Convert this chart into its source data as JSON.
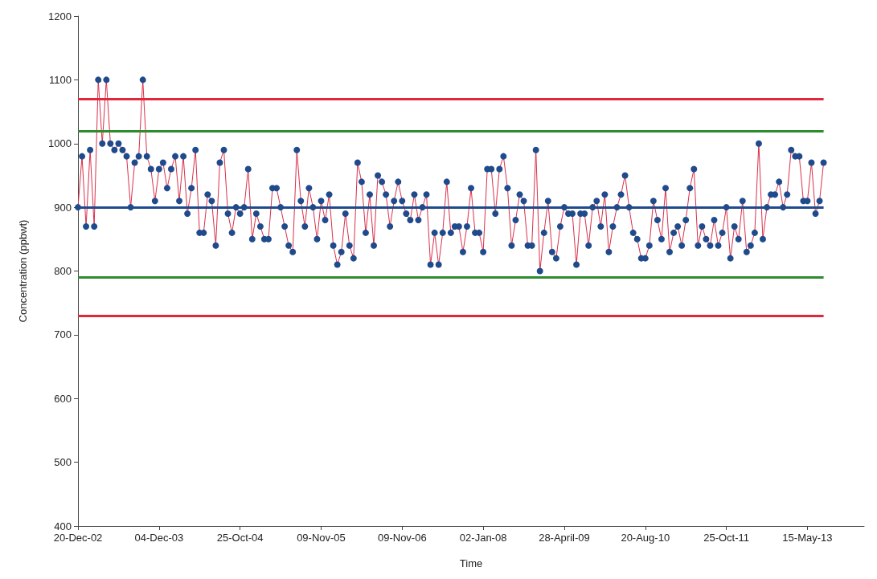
{
  "chart_data": {
    "type": "line",
    "xlabel": "Time",
    "ylabel": "Concentration (ppbwt)",
    "categories": [
      "20-Dec-02",
      null,
      null,
      null,
      null,
      null,
      null,
      null,
      null,
      null,
      null,
      null,
      null,
      null,
      null,
      null,
      null,
      null,
      null,
      null,
      "04-Dec-03",
      null,
      null,
      null,
      null,
      null,
      null,
      null,
      null,
      null,
      null,
      null,
      null,
      null,
      null,
      null,
      null,
      null,
      null,
      null,
      "25-Oct-04",
      null,
      null,
      null,
      null,
      null,
      null,
      null,
      null,
      null,
      null,
      null,
      null,
      null,
      null,
      null,
      null,
      null,
      null,
      null,
      "09-Nov-05",
      null,
      null,
      null,
      null,
      null,
      null,
      null,
      null,
      null,
      null,
      null,
      null,
      null,
      null,
      null,
      null,
      null,
      null,
      null,
      "09-Nov-06",
      null,
      null,
      null,
      null,
      null,
      null,
      null,
      null,
      null,
      null,
      null,
      null,
      null,
      null,
      null,
      null,
      null,
      null,
      null,
      "02-Jan-08",
      null,
      null,
      null,
      null,
      null,
      null,
      null,
      null,
      null,
      null,
      null,
      null,
      null,
      null,
      null,
      null,
      null,
      null,
      null,
      "28-April-09",
      null,
      null,
      null,
      null,
      null,
      null,
      null,
      null,
      null,
      null,
      null,
      null,
      null,
      null,
      null,
      null,
      null,
      null,
      null,
      "20-Aug-10",
      null,
      null,
      null,
      null,
      null,
      null,
      null,
      null,
      null,
      null,
      null,
      null,
      null,
      null,
      null,
      null,
      null,
      null,
      null,
      "25-Oct-11",
      null,
      null,
      null,
      null,
      null,
      null,
      null,
      null,
      null,
      null,
      null,
      null,
      null,
      null,
      null,
      null,
      null,
      null,
      null,
      "15-May-13",
      null,
      null,
      null,
      null,
      null,
      null,
      null,
      null,
      null,
      null,
      null,
      null,
      null,
      null
    ],
    "series": [
      {
        "color": "#1f4a8c",
        "values": [
          900,
          980,
          870,
          990,
          870,
          1100,
          1000,
          1100,
          1000,
          990,
          1000,
          990,
          980,
          900,
          970,
          980,
          1100,
          980,
          960,
          910,
          960,
          970,
          930,
          960,
          980,
          910,
          980,
          890,
          930,
          990,
          860,
          860,
          920,
          910,
          840,
          970,
          990,
          890,
          860,
          900,
          890,
          900,
          960,
          850,
          890,
          870,
          850,
          850,
          930,
          930,
          900,
          870,
          840,
          830,
          990,
          910,
          870,
          930,
          900,
          850,
          910,
          880,
          920,
          840,
          810,
          830,
          890,
          840,
          820,
          970,
          940,
          860,
          920,
          840,
          950,
          940,
          920,
          870,
          910,
          940,
          910,
          890,
          880,
          920,
          880,
          900,
          920,
          810,
          860,
          810,
          860,
          940,
          860,
          870,
          870,
          830,
          870,
          930,
          860,
          860,
          830,
          960,
          960,
          890,
          960,
          980,
          930,
          840,
          880,
          920,
          910,
          840,
          840,
          990,
          800,
          860,
          910,
          830,
          820,
          870,
          900,
          890,
          890,
          810,
          890,
          890,
          840,
          900,
          910,
          870,
          920,
          830,
          870,
          900,
          920,
          950,
          900,
          860,
          850,
          820,
          820,
          840,
          910,
          880,
          850,
          930,
          830,
          860,
          870,
          840,
          880,
          930,
          960,
          840,
          870,
          850,
          840,
          880,
          840,
          860,
          900,
          820,
          870,
          850,
          910,
          830,
          840,
          860,
          1000,
          850,
          900,
          920,
          920,
          940,
          900,
          920,
          990,
          980,
          980,
          910,
          910,
          970,
          890,
          910,
          970,
          null,
          null,
          null,
          null,
          null,
          null,
          null,
          null,
          null,
          null
        ]
      }
    ],
    "ylim": [
      400,
      1200
    ],
    "yticks": [
      400,
      500,
      600,
      700,
      800,
      900,
      1000,
      1100,
      1200
    ],
    "grid": false,
    "marker": "circle",
    "line_style": "solid",
    "ref_lines": [
      {
        "axis": "y",
        "value": 1070,
        "color": "#e0283c"
      },
      {
        "axis": "y",
        "value": 1020,
        "color": "#2e8b2e"
      },
      {
        "axis": "y",
        "value": 900,
        "color": "#1f4a8c"
      },
      {
        "axis": "y",
        "value": 790,
        "color": "#2e8b2e"
      },
      {
        "axis": "y",
        "value": 730,
        "color": "#e0283c"
      }
    ]
  }
}
